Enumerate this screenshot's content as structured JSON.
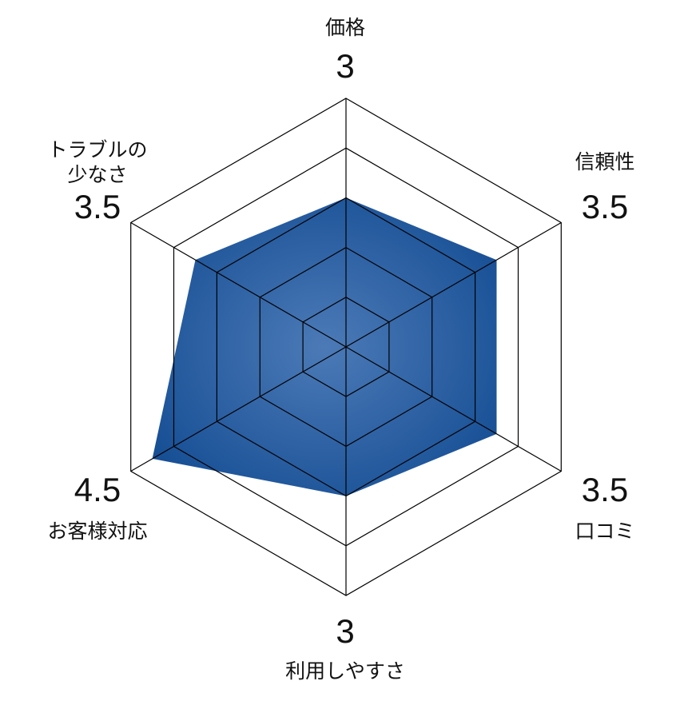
{
  "chart_data": {
    "type": "radar",
    "title": "",
    "max": 5,
    "grid_levels": 5,
    "axes": [
      {
        "label_lines": [
          "価格"
        ],
        "value": 3,
        "value_text": "3"
      },
      {
        "label_lines": [
          "信頼性"
        ],
        "value": 3.5,
        "value_text": "3.5"
      },
      {
        "label_lines": [
          "口コミ"
        ],
        "value": 3.5,
        "value_text": "3.5"
      },
      {
        "label_lines": [
          "利用しやすさ"
        ],
        "value": 3,
        "value_text": "3"
      },
      {
        "label_lines": [
          "お客様対応"
        ],
        "value": 4.5,
        "value_text": "4.5"
      },
      {
        "label_lines": [
          "トラブルの",
          "少なさ"
        ],
        "value": 3.5,
        "value_text": "3.5"
      }
    ],
    "fill_color": "#174f95",
    "fill_color_center": "#4c7ab7",
    "grid_color": "#000000"
  }
}
